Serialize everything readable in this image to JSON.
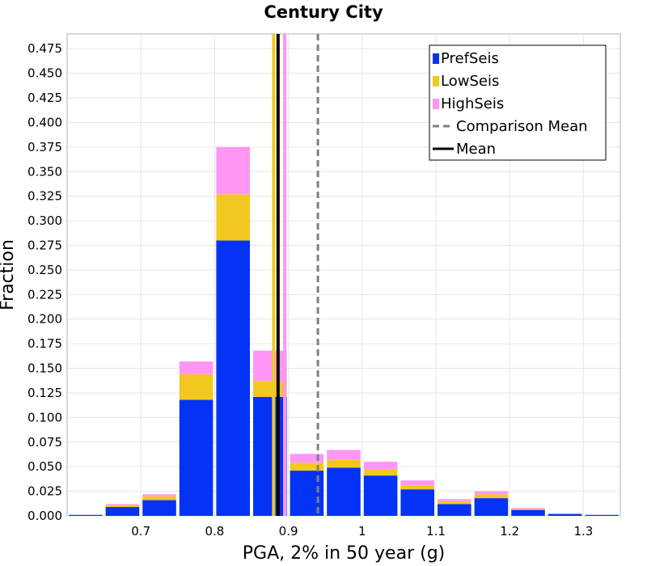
{
  "chart_data": {
    "type": "bar",
    "stacked": true,
    "title": "Century City",
    "xlabel": "PGA, 2% in 50 year (g)",
    "ylabel": "Fraction",
    "xlim": [
      0.6,
      1.35
    ],
    "ylim": [
      0,
      0.49
    ],
    "grid": true,
    "legend_position": "top-right",
    "x_ticks": [
      "0.7",
      "0.8",
      "0.9",
      "1",
      "1.1",
      "1.2",
      "1.3"
    ],
    "y_ticks": [
      "0.000",
      "0.025",
      "0.050",
      "0.075",
      "0.100",
      "0.125",
      "0.150",
      "0.175",
      "0.200",
      "0.225",
      "0.250",
      "0.275",
      "0.300",
      "0.325",
      "0.350",
      "0.375",
      "0.400",
      "0.425",
      "0.450",
      "0.475"
    ],
    "bin_width": 0.05,
    "bin_centers": [
      0.625,
      0.675,
      0.725,
      0.775,
      0.825,
      0.875,
      0.925,
      0.975,
      1.025,
      1.075,
      1.125,
      1.175,
      1.225,
      1.275,
      1.325
    ],
    "series": [
      {
        "name": "PrefSeis",
        "color": "#0533f5",
        "values": [
          0.001,
          0.009,
          0.016,
          0.118,
          0.28,
          0.121,
          0.046,
          0.049,
          0.041,
          0.027,
          0.012,
          0.018,
          0.006,
          0.002,
          0.001
        ]
      },
      {
        "name": "LowSeis",
        "color": "#f2c820",
        "values": [
          0.0,
          0.002,
          0.004,
          0.026,
          0.047,
          0.016,
          0.008,
          0.008,
          0.006,
          0.004,
          0.003,
          0.004,
          0.001,
          0.0,
          0.0
        ]
      },
      {
        "name": "HighSeis",
        "color": "#ff96f4",
        "values": [
          0.0,
          0.001,
          0.002,
          0.013,
          0.048,
          0.031,
          0.009,
          0.01,
          0.008,
          0.005,
          0.002,
          0.003,
          0.001,
          0.0,
          0.0
        ]
      }
    ],
    "vertical_lines": [
      {
        "name": "LowSeis mean",
        "x": 0.88,
        "color": "#f2c820"
      },
      {
        "name": "HighSeis mean",
        "x": 0.895,
        "color": "#ff96f4"
      },
      {
        "name": "Comparison Mean",
        "x": 0.94,
        "color": "#808080",
        "dashed": true
      },
      {
        "name": "Mean",
        "x": 0.886,
        "color": "#000000"
      }
    ],
    "legend": [
      {
        "label": "PrefSeis",
        "color": "#0533f5",
        "symbol": "square"
      },
      {
        "label": "LowSeis",
        "color": "#f2c820",
        "symbol": "square"
      },
      {
        "label": "HighSeis",
        "color": "#ff96f4",
        "symbol": "square"
      },
      {
        "label": "Comparison Mean",
        "color": "#808080",
        "symbol": "dashed-line"
      },
      {
        "label": "Mean",
        "color": "#000000",
        "symbol": "line"
      }
    ]
  }
}
